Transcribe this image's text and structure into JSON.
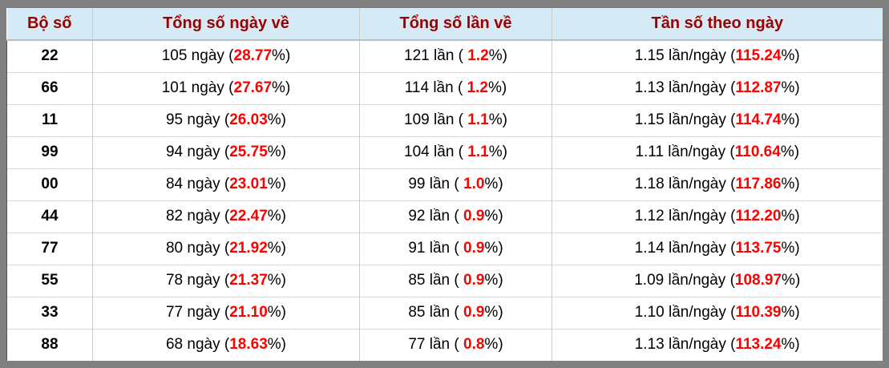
{
  "colors": {
    "frame": "#808080",
    "header_bg": "#d6eaf5",
    "header_text": "#990000",
    "highlight_red": "#ff0000",
    "row_separator": "#dcdcdc",
    "column_separator": "#cccccc"
  },
  "header": {
    "pair": "Bộ số",
    "days": "Tổng số ngày về",
    "times": "Tổng số lần về",
    "freq": "Tần số theo ngày"
  },
  "strings": {
    "pct_close": "%)"
  },
  "rows": [
    {
      "pair": "22",
      "days_main": "105 ngày (",
      "days_pct": "28.77",
      "times_main": "121 lần ( ",
      "times_pct": "1.2",
      "freq_main": "1.15 lần/ngày (",
      "freq_pct": "115.24"
    },
    {
      "pair": "66",
      "days_main": "101 ngày (",
      "days_pct": "27.67",
      "times_main": "114 lần ( ",
      "times_pct": "1.2",
      "freq_main": "1.13 lần/ngày (",
      "freq_pct": "112.87"
    },
    {
      "pair": "11",
      "days_main": "95 ngày (",
      "days_pct": "26.03",
      "times_main": "109 lần ( ",
      "times_pct": "1.1",
      "freq_main": "1.15 lần/ngày (",
      "freq_pct": "114.74"
    },
    {
      "pair": "99",
      "days_main": "94 ngày (",
      "days_pct": "25.75",
      "times_main": "104 lần ( ",
      "times_pct": "1.1",
      "freq_main": "1.11 lần/ngày (",
      "freq_pct": "110.64"
    },
    {
      "pair": "00",
      "days_main": "84 ngày (",
      "days_pct": "23.01",
      "times_main": "99 lần ( ",
      "times_pct": "1.0",
      "freq_main": "1.18 lần/ngày (",
      "freq_pct": "117.86"
    },
    {
      "pair": "44",
      "days_main": "82 ngày (",
      "days_pct": "22.47",
      "times_main": "92 lần ( ",
      "times_pct": "0.9",
      "freq_main": "1.12 lần/ngày (",
      "freq_pct": "112.20"
    },
    {
      "pair": "77",
      "days_main": "80 ngày (",
      "days_pct": "21.92",
      "times_main": "91 lần ( ",
      "times_pct": "0.9",
      "freq_main": "1.14 lần/ngày (",
      "freq_pct": "113.75"
    },
    {
      "pair": "55",
      "days_main": "78 ngày (",
      "days_pct": "21.37",
      "times_main": "85 lần ( ",
      "times_pct": "0.9",
      "freq_main": "1.09 lần/ngày (",
      "freq_pct": "108.97"
    },
    {
      "pair": "33",
      "days_main": "77 ngày (",
      "days_pct": "21.10",
      "times_main": "85 lần ( ",
      "times_pct": "0.9",
      "freq_main": "1.10 lần/ngày (",
      "freq_pct": "110.39"
    },
    {
      "pair": "88",
      "days_main": "68 ngày (",
      "days_pct": "18.63",
      "times_main": "77 lần ( ",
      "times_pct": "0.8",
      "freq_main": "1.13 lần/ngày (",
      "freq_pct": "113.24"
    }
  ]
}
